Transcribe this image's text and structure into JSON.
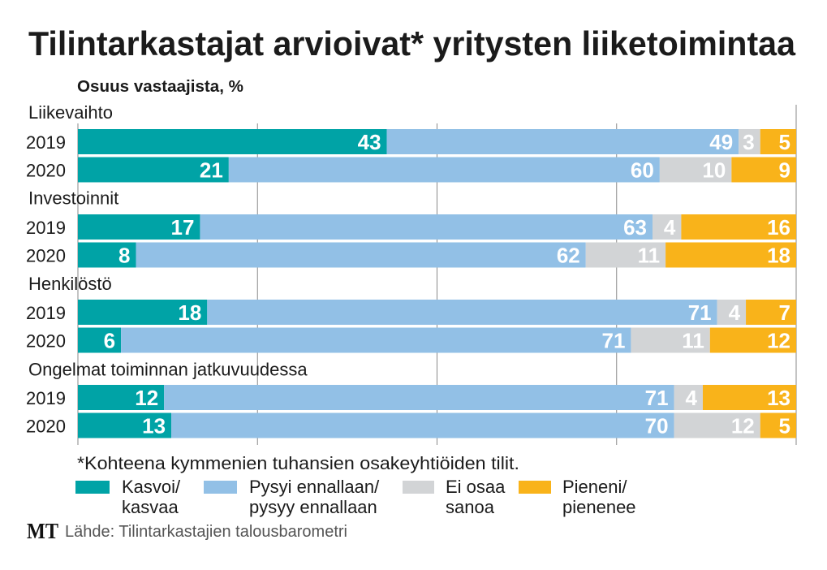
{
  "title": "Tilintarkastajat arvioivat* yritysten liiketoimintaa",
  "subtitle": "Osuus vastaajista, %",
  "footnote": "*Kohteena kymmenien tuhansien osakeyhtiöiden tilit.",
  "source": "Lähde: Tilintarkastajien talousbarometri",
  "logo": "MT",
  "chart_data": {
    "type": "bar",
    "orientation": "horizontal",
    "stacked": true,
    "title": "Tilintarkastajat arvioivat* yritysten liiketoimintaa",
    "subtitle": "Osuus vastaajista, %",
    "xlabel": "",
    "ylabel": "Osuus vastaajista, %",
    "xlim": [
      0,
      100
    ],
    "grid": true,
    "gridlines_at": [
      0,
      25,
      50,
      75,
      100
    ],
    "legend_position": "bottom",
    "groups": [
      "Liikevaihto",
      "Investoinnit",
      "Henkilöstö",
      "Ongelmat toiminnan jatkuvuudessa"
    ],
    "categories": [
      {
        "group": 0,
        "year": "2019"
      },
      {
        "group": 0,
        "year": "2020"
      },
      {
        "group": 1,
        "year": "2019"
      },
      {
        "group": 1,
        "year": "2020"
      },
      {
        "group": 2,
        "year": "2019"
      },
      {
        "group": 2,
        "year": "2020"
      },
      {
        "group": 3,
        "year": "2019"
      },
      {
        "group": 3,
        "year": "2020"
      }
    ],
    "series": [
      {
        "name": "Kasvoi/ kasvaa",
        "label_lines": [
          "Kasvoi/",
          "kasvaa"
        ],
        "color": "#00a3a6",
        "values": [
          43,
          21,
          17,
          8,
          18,
          6,
          12,
          13
        ]
      },
      {
        "name": "Pysyi ennallaan/ pysyy ennallaan",
        "label_lines": [
          "Pysyi ennallaan/",
          "pysyy ennallaan"
        ],
        "color": "#92c0e6",
        "values": [
          49,
          60,
          63,
          62,
          71,
          71,
          71,
          70
        ]
      },
      {
        "name": "Ei osaa sanoa",
        "label_lines": [
          "Ei osaa",
          "sanoa"
        ],
        "color": "#d2d4d6",
        "values": [
          3,
          10,
          4,
          11,
          4,
          11,
          4,
          12
        ]
      },
      {
        "name": "Pieneni/ pienenee",
        "label_lines": [
          "Pieneni/",
          "pienenee"
        ],
        "color": "#f9b31a",
        "values": [
          5,
          9,
          16,
          18,
          7,
          12,
          13,
          5
        ]
      }
    ]
  }
}
